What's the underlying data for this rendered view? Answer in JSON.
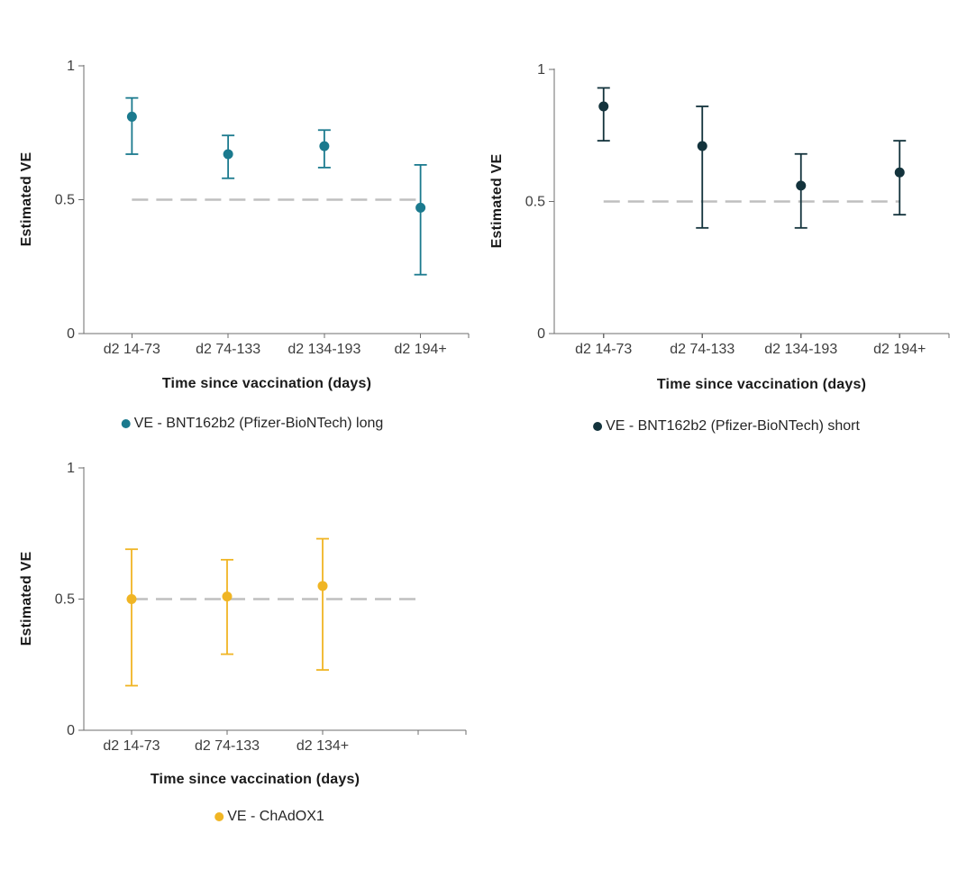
{
  "figure": {
    "background": "#ffffff",
    "ref_line_color": "#bfbfbf",
    "axis_color": "#6e6e6e",
    "tick_text_color": "#3d3d3d",
    "title_text_color": "#1a1a1a"
  },
  "chart_data": [
    {
      "id": "bnt162b2-long",
      "type": "scatter",
      "ylabel": "Estimated VE",
      "xlabel": "Time since vaccination (days)",
      "legend": "VE - BNT162b2 (Pfizer-BioNTech) long",
      "color": "#1b7a8e",
      "categories": [
        "d2 14-73",
        "d2 74-133",
        "d2 134-193",
        "d2 194+"
      ],
      "values": [
        0.81,
        0.67,
        0.7,
        0.47
      ],
      "ci_low": [
        0.67,
        0.58,
        0.62,
        0.22
      ],
      "ci_high": [
        0.88,
        0.74,
        0.76,
        0.63
      ],
      "ylim": [
        0,
        1
      ],
      "yticks": [
        0,
        0.5,
        1
      ],
      "ytick_labels": [
        "0",
        "0.5",
        "1"
      ],
      "ref_line": 0.5,
      "grid": false,
      "legend_position": "bottom"
    },
    {
      "id": "bnt162b2-short",
      "type": "scatter",
      "ylabel": "Estimated VE",
      "xlabel": "Time since vaccination (days)",
      "legend": "VE - BNT162b2 (Pfizer-BioNTech) short",
      "color": "#13333c",
      "categories": [
        "d2 14-73",
        "d2 74-133",
        "d2 134-193",
        "d2 194+"
      ],
      "values": [
        0.86,
        0.71,
        0.56,
        0.61
      ],
      "ci_low": [
        0.73,
        0.4,
        0.4,
        0.45
      ],
      "ci_high": [
        0.93,
        0.86,
        0.68,
        0.73
      ],
      "ylim": [
        0,
        1
      ],
      "yticks": [
        0,
        0.5,
        1
      ],
      "ytick_labels": [
        "0",
        "0.5",
        "1"
      ],
      "ref_line": 0.5,
      "grid": false,
      "legend_position": "bottom"
    },
    {
      "id": "chadox1",
      "type": "scatter",
      "ylabel": "Estimated VE",
      "xlabel": "Time since vaccination (days)",
      "legend": "VE - ChAdOX1",
      "color": "#f0b524",
      "categories": [
        "d2 14-73",
        "d2 74-133",
        "d2 134+"
      ],
      "values": [
        0.5,
        0.51,
        0.55
      ],
      "ci_low": [
        0.17,
        0.29,
        0.23
      ],
      "ci_high": [
        0.69,
        0.65,
        0.73
      ],
      "ylim": [
        0,
        1
      ],
      "yticks": [
        0,
        0.5,
        1
      ],
      "ytick_labels": [
        "0",
        "0.5",
        "1"
      ],
      "ref_line": 0.5,
      "grid": false,
      "legend_position": "bottom"
    }
  ]
}
